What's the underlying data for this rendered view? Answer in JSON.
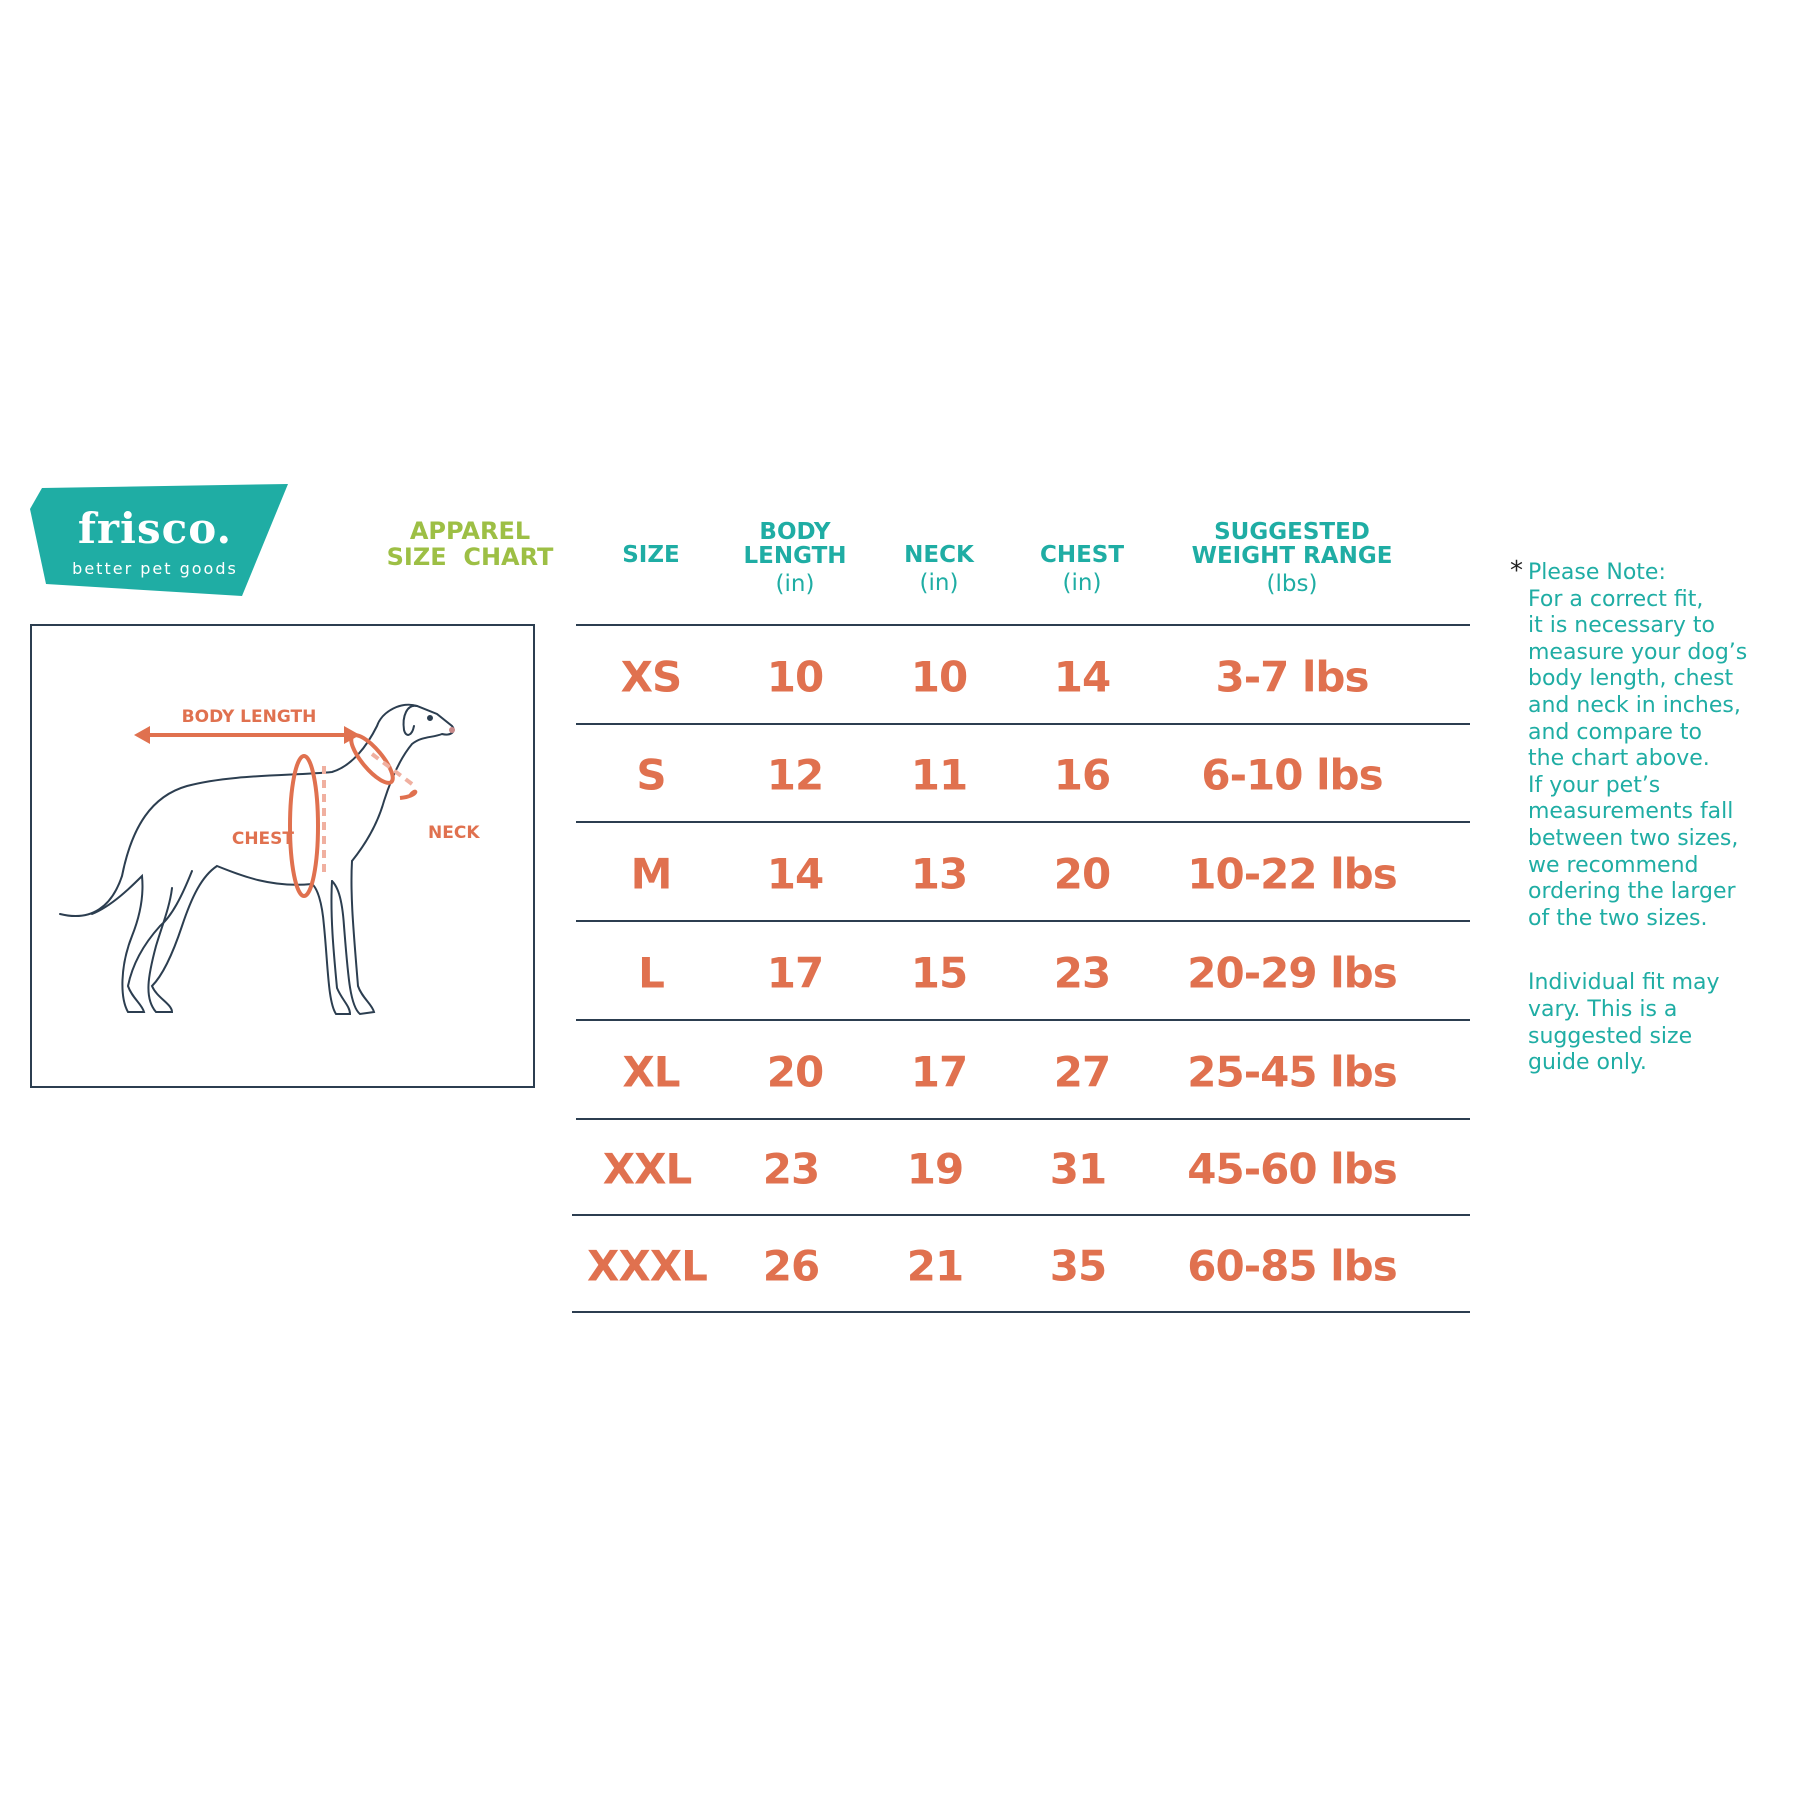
{
  "brand": {
    "name": "frisco.",
    "tagline": "better pet goods",
    "color": "#1fada4"
  },
  "title": {
    "line1": "APPAREL",
    "line2": "SIZE  CHART",
    "color": "#9dbf45"
  },
  "diagram": {
    "labels": {
      "body_length": "BODY LENGTH",
      "chest": "CHEST",
      "neck": "NECK"
    },
    "accent": "#e0714f"
  },
  "table": {
    "headers": [
      {
        "line1": "",
        "line2": "SIZE",
        "unit": ""
      },
      {
        "line1": "BODY",
        "line2": "LENGTH",
        "unit": "(in)"
      },
      {
        "line1": "",
        "line2": "NECK",
        "unit": "(in)"
      },
      {
        "line1": "",
        "line2": "CHEST",
        "unit": "(in)"
      },
      {
        "line1": "SUGGESTED",
        "line2": "WEIGHT RANGE",
        "unit": "(lbs)"
      }
    ],
    "rows": [
      [
        "XS",
        "10",
        "10",
        "14",
        "3-7 lbs"
      ],
      [
        "S",
        "12",
        "11",
        "16",
        "6-10 lbs"
      ],
      [
        "M",
        "14",
        "13",
        "20",
        "10-22 lbs"
      ],
      [
        "L",
        "17",
        "15",
        "23",
        "20-29 lbs"
      ],
      [
        "XL",
        "20",
        "17",
        "27",
        "25-45 lbs"
      ],
      [
        "XXL",
        "23",
        "19",
        "31",
        "45-60 lbs"
      ],
      [
        "XXXL",
        "26",
        "21",
        "35",
        "60-85 lbs"
      ]
    ],
    "header_color": "#1fada4",
    "value_color": "#e0714f"
  },
  "note": {
    "asterisk": "*",
    "lines": [
      "Please Note:",
      "For a correct fit,",
      "it is necessary to",
      "measure your dog’s",
      "body length, chest",
      "and neck in inches,",
      "and compare to",
      "the chart above.",
      "If your pet’s",
      "measurements fall",
      "between two sizes,",
      "we recommend",
      "ordering the larger",
      "of the two sizes."
    ],
    "disclaimer": [
      "Individual fit may",
      "vary. This is a",
      "suggested size",
      "guide only."
    ]
  }
}
